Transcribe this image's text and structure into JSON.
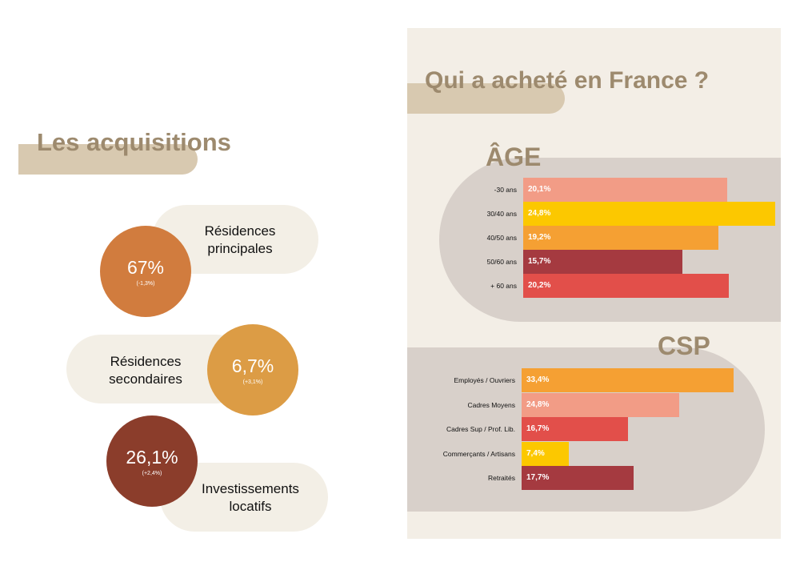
{
  "acquisitions": {
    "title": "Les acquisitions",
    "items": [
      {
        "percent": "67%",
        "change": "(-1,3%)",
        "label_line1": "Résidences",
        "label_line2": "principales",
        "color": "#d17c3e"
      },
      {
        "percent": "6,7%",
        "change": "(+3,1%)",
        "label_line1": "Résidences",
        "label_line2": "secondaires",
        "color": "#dc9c45"
      },
      {
        "percent": "26,1%",
        "change": "(+2,4%)",
        "label_line1": "Investissements",
        "label_line2": "locatifs",
        "color": "#8b3d2b"
      }
    ]
  },
  "buyers": {
    "title": "Qui a acheté en France ?"
  },
  "chart_data": [
    {
      "type": "bar",
      "title": "ÂGE",
      "orientation": "horizontal",
      "categories": [
        "-30 ans",
        "30/40 ans",
        "40/50 ans",
        "50/60 ans",
        "+ 60 ans"
      ],
      "values": [
        20.1,
        24.8,
        19.2,
        15.7,
        20.2
      ],
      "value_labels": [
        "20,1%",
        "24,8%",
        "19,2%",
        "15,7%",
        "20,2%"
      ],
      "colors": [
        "#f29c86",
        "#fcc800",
        "#f5a033",
        "#a53a40",
        "#e24f4a"
      ],
      "xlim": [
        0,
        24.8
      ]
    },
    {
      "type": "bar",
      "title": "CSP",
      "orientation": "horizontal",
      "categories": [
        "Employés / Ouvriers",
        "Cadres Moyens",
        "Cadres Sup / Prof. Lib.",
        "Commerçants / Artisans",
        "Retraités"
      ],
      "values": [
        33.4,
        24.8,
        16.7,
        7.4,
        17.7
      ],
      "value_labels": [
        "33,4%",
        "24,8%",
        "16,7%",
        "7,4%",
        "17,7%"
      ],
      "colors": [
        "#f5a033",
        "#f29c86",
        "#e24f4a",
        "#fcc800",
        "#a53a40"
      ],
      "xlim": [
        0,
        33.4
      ]
    }
  ]
}
